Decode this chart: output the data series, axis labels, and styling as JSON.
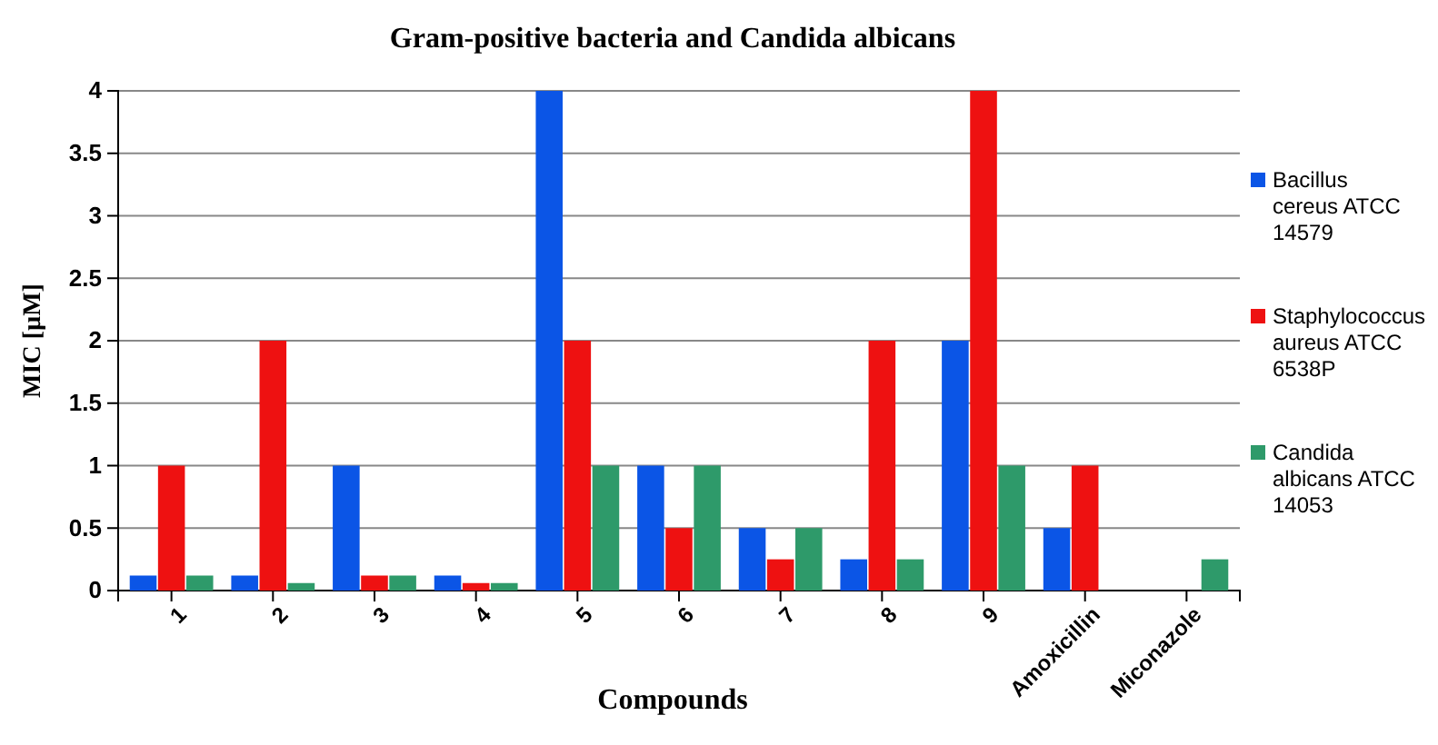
{
  "chart_data": {
    "type": "bar",
    "title": "Gram-positive bacteria and Candida albicans",
    "xlabel": "Compounds",
    "ylabel": "MIC [µM]",
    "categories": [
      "1",
      "2",
      "3",
      "4",
      "5",
      "6",
      "7",
      "8",
      "9",
      "Amoxicillin",
      "Miconazole"
    ],
    "series": [
      {
        "name": "Bacillus cereus ATCC 14579",
        "color": "#0b55e6",
        "values": [
          0.12,
          0.12,
          1,
          0.12,
          4,
          1,
          0.5,
          0.25,
          2,
          0.5,
          null
        ]
      },
      {
        "name": "Staphylococcus aureus ATCC 6538P",
        "color": "#ee1111",
        "values": [
          1,
          2,
          0.12,
          0.06,
          2,
          0.5,
          0.25,
          2,
          4,
          1,
          null
        ]
      },
      {
        "name": "Candida albicans ATCC 14053",
        "color": "#2e9a6a",
        "values": [
          0.12,
          0.06,
          0.12,
          0.06,
          1,
          1,
          0.5,
          0.25,
          1,
          null,
          0.25
        ]
      }
    ],
    "ylim": [
      0,
      4
    ],
    "yticks": [
      0,
      0.5,
      1,
      1.5,
      2,
      2.5,
      3,
      3.5,
      4
    ],
    "grid": "y",
    "legend": "right"
  }
}
